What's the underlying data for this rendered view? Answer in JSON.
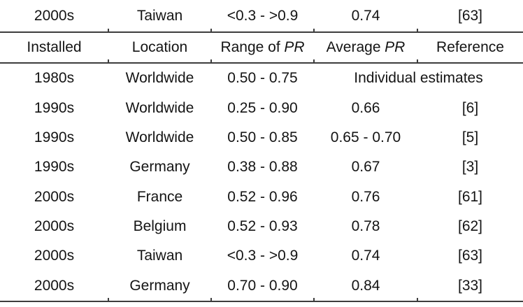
{
  "page": {
    "background_color": "#ffffff",
    "text_color": "#141414",
    "rule_color": "#3d3d3d"
  },
  "table": {
    "continuation_row": {
      "installed": "2000s",
      "location": "Taiwan",
      "range": "<0.3 - >0.9",
      "average": "0.74",
      "reference": "[63]"
    },
    "headers": [
      {
        "text": "Installed",
        "italic": ""
      },
      {
        "text": "Location",
        "italic": ""
      },
      {
        "text": "Range of",
        "italic": "PR"
      },
      {
        "text": "Average",
        "italic": "PR"
      },
      {
        "text": "Reference",
        "italic": ""
      }
    ],
    "rows": [
      {
        "installed": "1980s",
        "location": "Worldwide",
        "range": "0.50 - 0.75",
        "note": "Individual estimates"
      },
      {
        "installed": "1990s",
        "location": "Worldwide",
        "range": "0.25 - 0.90",
        "average": "0.66",
        "reference": "[6]"
      },
      {
        "installed": "1990s",
        "location": "Worldwide",
        "range": "0.50 - 0.85",
        "average": "0.65 - 0.70",
        "reference": "[5]"
      },
      {
        "installed": "1990s",
        "location": "Germany",
        "range": "0.38 - 0.88",
        "average": "0.67",
        "reference": "[3]"
      },
      {
        "installed": "2000s",
        "location": "France",
        "range": "0.52 - 0.96",
        "average": "0.76",
        "reference": "[61]"
      },
      {
        "installed": "2000s",
        "location": "Belgium",
        "range": "0.52 - 0.93",
        "average": "0.78",
        "reference": "[62]"
      },
      {
        "installed": "2000s",
        "location": "Taiwan",
        "range": "<0.3 - >0.9",
        "average": "0.74",
        "reference": "[63]"
      },
      {
        "installed": "2000s",
        "location": "Germany",
        "range": "0.70 - 0.90",
        "average": "0.84",
        "reference": "[33]"
      }
    ]
  },
  "chart_data": {
    "type": "table",
    "columns": [
      "Installed",
      "Location",
      "Range of PR",
      "Average PR",
      "Reference"
    ],
    "rows_above_header": [
      [
        "2000s",
        "Taiwan",
        "<0.3 - >0.9",
        "0.74",
        "[63]"
      ]
    ],
    "rows": [
      [
        "1980s",
        "Worldwide",
        "0.50 - 0.75",
        "Individual estimates",
        "Individual estimates"
      ],
      [
        "1990s",
        "Worldwide",
        "0.25 - 0.90",
        "0.66",
        "[6]"
      ],
      [
        "1990s",
        "Worldwide",
        "0.50 - 0.85",
        "0.65 - 0.70",
        "[5]"
      ],
      [
        "1990s",
        "Germany",
        "0.38 - 0.88",
        "0.67",
        "[3]"
      ],
      [
        "2000s",
        "France",
        "0.52 - 0.96",
        "0.76",
        "[61]"
      ],
      [
        "2000s",
        "Belgium",
        "0.52 - 0.93",
        "0.78",
        "[62]"
      ],
      [
        "2000s",
        "Taiwan",
        "<0.3 - >0.9",
        "0.74",
        "[63]"
      ],
      [
        "2000s",
        "Germany",
        "0.70 - 0.90",
        "0.84",
        "[33]"
      ]
    ],
    "notes": "Table fragment: one data row appears above a repeated header row (page-break continuation). 'Individual estimates' is a merged cell spanning the Average PR and Reference columns."
  }
}
